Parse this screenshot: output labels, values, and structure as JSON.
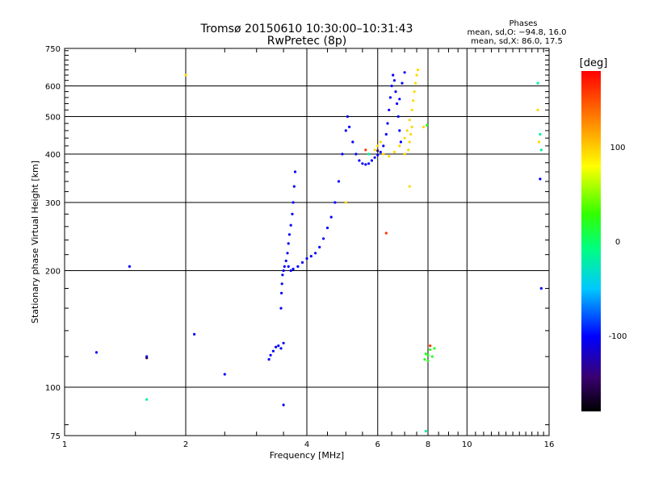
{
  "chart_data": {
    "type": "scatter",
    "title": "Tromsø 20150610 10:30:00–10:31:43",
    "subtitle": "RwPretec (8p)",
    "phases_box": {
      "heading": "Phases",
      "line1": "mean, sd,O: −94.8, 16.0",
      "line2": "mean, sd,X:  86.0, 17.5"
    },
    "xlabel": "Frequency [MHz]",
    "ylabel": "Stationary phase Virtual Height [km]",
    "x_scale": "log",
    "y_scale": "log",
    "xlim": [
      1,
      16
    ],
    "ylim": [
      75,
      750
    ],
    "x_ticks": [
      {
        "v": 1,
        "label": "1"
      },
      {
        "v": 2,
        "label": "2"
      },
      {
        "v": 4,
        "label": "4"
      },
      {
        "v": 6,
        "label": "6"
      },
      {
        "v": 8,
        "label": "8"
      },
      {
        "v": 10,
        "label": "10"
      },
      {
        "v": 16,
        "label": "16"
      }
    ],
    "x_grid": [
      2,
      4,
      6,
      8,
      10
    ],
    "y_ticks": [
      {
        "v": 75,
        "label": "75"
      },
      {
        "v": 100,
        "label": "100"
      },
      {
        "v": 200,
        "label": "200"
      },
      {
        "v": 300,
        "label": "300"
      },
      {
        "v": 400,
        "label": "400"
      },
      {
        "v": 500,
        "label": "500"
      },
      {
        "v": 600,
        "label": "600"
      },
      {
        "v": 750,
        "label": "750"
      }
    ],
    "y_grid": [
      100,
      200,
      300,
      400,
      500,
      600
    ],
    "colorbar": {
      "label": "[deg]",
      "range": [
        -180,
        180
      ],
      "ticks": [
        {
          "v": 100,
          "label": "100"
        },
        {
          "v": 0,
          "label": "0"
        },
        {
          "v": -100,
          "label": "-100"
        }
      ]
    },
    "series": [
      {
        "mode": "O",
        "phase": -100,
        "points": [
          [
            3.22,
            118
          ],
          [
            3.25,
            121
          ],
          [
            3.3,
            124
          ],
          [
            3.35,
            127
          ],
          [
            3.4,
            128
          ],
          [
            3.45,
            126
          ],
          [
            3.5,
            130
          ],
          [
            3.45,
            160
          ],
          [
            3.46,
            175
          ],
          [
            3.47,
            185
          ],
          [
            3.48,
            195
          ],
          [
            3.5,
            200
          ],
          [
            3.52,
            205
          ],
          [
            3.55,
            212
          ],
          [
            3.58,
            222
          ],
          [
            3.6,
            235
          ],
          [
            3.62,
            248
          ],
          [
            3.65,
            262
          ],
          [
            3.68,
            280
          ],
          [
            3.7,
            300
          ],
          [
            3.72,
            330
          ],
          [
            3.74,
            360
          ],
          [
            3.6,
            205
          ],
          [
            3.65,
            200
          ],
          [
            3.7,
            202
          ],
          [
            3.8,
            205
          ],
          [
            3.9,
            210
          ],
          [
            4.0,
            215
          ],
          [
            4.1,
            218
          ],
          [
            4.2,
            222
          ],
          [
            4.3,
            230
          ],
          [
            4.4,
            242
          ],
          [
            4.5,
            258
          ],
          [
            4.6,
            275
          ],
          [
            4.7,
            300
          ],
          [
            4.8,
            340
          ],
          [
            4.9,
            400
          ],
          [
            5.0,
            460
          ],
          [
            5.05,
            500
          ],
          [
            5.1,
            470
          ],
          [
            5.2,
            430
          ],
          [
            5.3,
            400
          ],
          [
            5.4,
            385
          ],
          [
            5.5,
            378
          ],
          [
            5.6,
            376
          ],
          [
            5.7,
            378
          ],
          [
            5.8,
            385
          ],
          [
            5.9,
            392
          ],
          [
            6.0,
            398
          ],
          [
            6.1,
            405
          ],
          [
            6.2,
            420
          ],
          [
            6.3,
            450
          ],
          [
            6.35,
            480
          ],
          [
            6.4,
            520
          ],
          [
            6.45,
            560
          ],
          [
            6.5,
            600
          ],
          [
            6.55,
            640
          ],
          [
            6.6,
            620
          ],
          [
            6.65,
            580
          ],
          [
            6.7,
            540
          ],
          [
            6.75,
            500
          ],
          [
            6.8,
            460
          ],
          [
            6.85,
            430
          ],
          [
            1.45,
            205
          ],
          [
            1.2,
            123
          ],
          [
            1.6,
            120
          ],
          [
            2.1,
            137
          ],
          [
            2.5,
            108
          ],
          [
            3.5,
            90
          ],
          [
            15.2,
            345
          ],
          [
            15.3,
            180
          ],
          [
            7.0,
            650
          ],
          [
            6.9,
            610
          ],
          [
            6.8,
            555
          ]
        ]
      },
      {
        "mode": "X",
        "phase": 95,
        "points": [
          [
            6.2,
            400
          ],
          [
            6.4,
            395
          ],
          [
            6.6,
            405
          ],
          [
            6.8,
            420
          ],
          [
            7.0,
            440
          ],
          [
            7.1,
            460
          ],
          [
            7.2,
            490
          ],
          [
            7.3,
            520
          ],
          [
            7.35,
            550
          ],
          [
            7.4,
            580
          ],
          [
            7.45,
            610
          ],
          [
            7.5,
            640
          ],
          [
            7.55,
            660
          ],
          [
            7.3,
            470
          ],
          [
            7.25,
            450
          ],
          [
            7.2,
            430
          ],
          [
            7.15,
            410
          ],
          [
            7.0,
            400
          ],
          [
            5.9,
            410
          ],
          [
            6.0,
            420
          ],
          [
            6.1,
            430
          ],
          [
            5.0,
            300
          ],
          [
            7.2,
            330
          ],
          [
            7.8,
            470
          ],
          [
            2.0,
            640
          ],
          [
            15.0,
            520
          ],
          [
            15.1,
            430
          ]
        ]
      },
      {
        "mode": "other",
        "phase": 20,
        "points": [
          [
            7.9,
            122
          ],
          [
            8.0,
            121
          ],
          [
            8.1,
            125
          ],
          [
            8.3,
            126
          ],
          [
            7.85,
            118
          ],
          [
            8.0,
            117
          ],
          [
            8.2,
            120
          ],
          [
            7.95,
            475
          ]
        ]
      },
      {
        "mode": "other",
        "phase": -20,
        "points": [
          [
            1.6,
            93
          ],
          [
            15.0,
            610
          ],
          [
            15.2,
            450
          ],
          [
            15.3,
            410
          ],
          [
            7.9,
            77
          ],
          [
            5.7,
            400
          ]
        ]
      },
      {
        "mode": "other",
        "phase": 160,
        "points": [
          [
            6.3,
            250
          ],
          [
            8.1,
            128
          ],
          [
            5.6,
            410
          ]
        ]
      },
      {
        "mode": "other",
        "phase": -150,
        "points": [
          [
            1.6,
            119
          ],
          [
            6.0,
            408
          ]
        ]
      }
    ]
  }
}
